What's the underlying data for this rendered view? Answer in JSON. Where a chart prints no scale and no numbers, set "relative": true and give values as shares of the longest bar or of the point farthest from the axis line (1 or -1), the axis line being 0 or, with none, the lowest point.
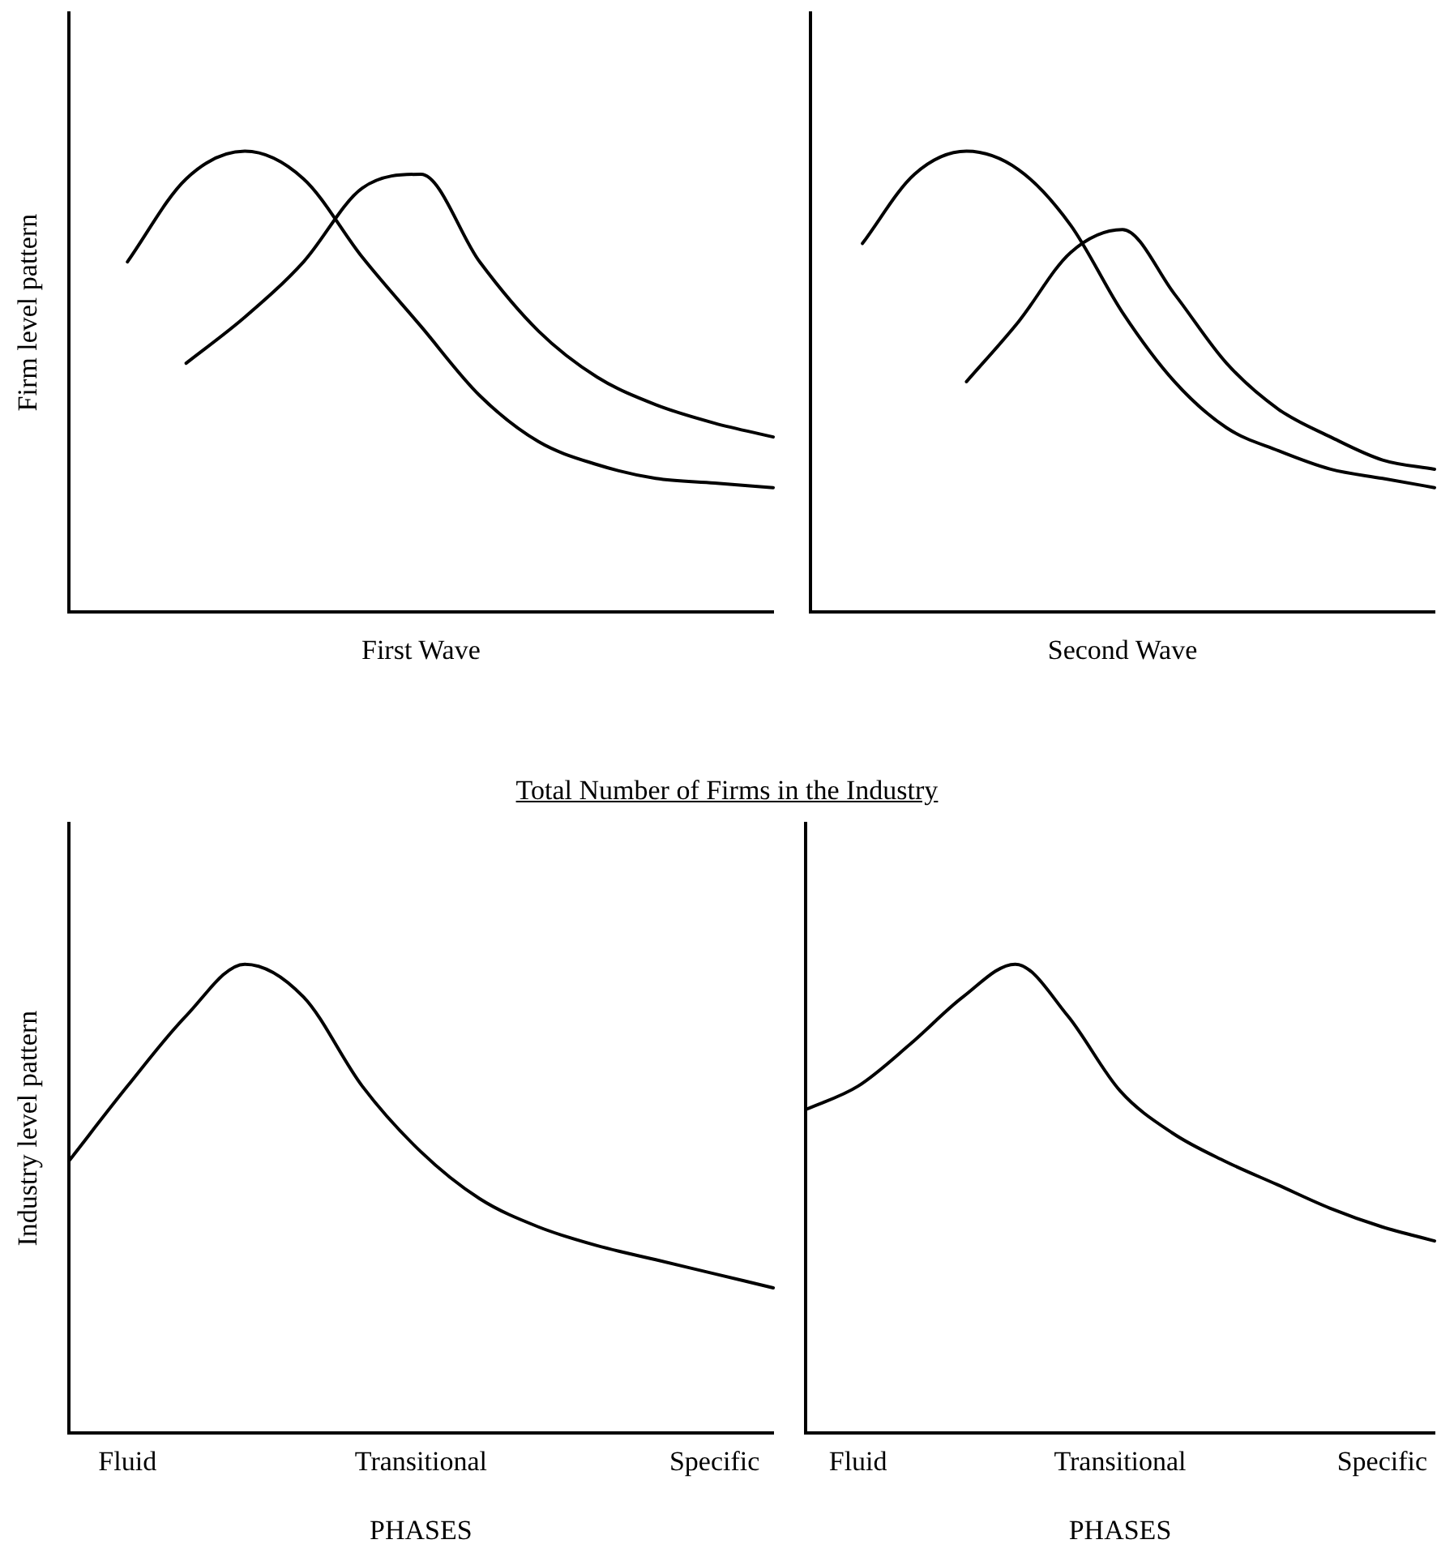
{
  "chart_data": [
    {
      "type": "line",
      "relative": true,
      "xlabel": "First Wave",
      "ylabel": "Firm level pattern",
      "categories": [
        null,
        null,
        null,
        null,
        null,
        null,
        null,
        null,
        null,
        null,
        null,
        null,
        null
      ],
      "tick_labels": false,
      "grid": false,
      "legend": false,
      "marker": "none",
      "line_style": "solid",
      "series": [
        {
          "color": "#000000",
          "values": [
            null,
            0.76,
            0.94,
            1.0,
            0.94,
            0.77,
            0.62,
            0.47,
            0.37,
            0.32,
            0.29,
            0.28,
            0.27
          ]
        },
        {
          "color": "#000000",
          "values": [
            null,
            null,
            0.54,
            0.64,
            0.76,
            0.92,
            0.95,
            0.76,
            0.61,
            0.51,
            0.45,
            0.41,
            0.38
          ]
        }
      ]
    },
    {
      "type": "line",
      "relative": true,
      "xlabel": "Second Wave",
      "categories": [
        null,
        null,
        null,
        null,
        null,
        null,
        null,
        null,
        null,
        null,
        null,
        null,
        null
      ],
      "tick_labels": false,
      "grid": false,
      "legend": false,
      "marker": "none",
      "line_style": "solid",
      "series": [
        {
          "color": "#000000",
          "values": [
            null,
            0.8,
            0.95,
            1.0,
            0.96,
            0.84,
            0.65,
            0.5,
            0.4,
            0.35,
            0.31,
            0.29,
            0.27
          ]
        },
        {
          "color": "#000000",
          "values": [
            null,
            null,
            null,
            0.5,
            0.63,
            0.78,
            0.83,
            0.69,
            0.54,
            0.44,
            0.38,
            0.33,
            0.31
          ]
        }
      ]
    },
    {
      "type": "line",
      "relative": true,
      "title": "Total Number of Firms in the Industry",
      "xlabel": "PHASES",
      "ylabel": "Industry level pattern",
      "categories": [
        null,
        "Fluid",
        null,
        null,
        null,
        null,
        "Transitional",
        null,
        null,
        null,
        null,
        "Specific",
        null
      ],
      "tick_labels": "x",
      "grid": false,
      "legend": false,
      "marker": "none",
      "line_style": "solid",
      "series": [
        {
          "color": "#000000",
          "values": [
            0.58,
            0.74,
            0.89,
            1.0,
            0.93,
            0.74,
            0.6,
            0.5,
            0.44,
            0.4,
            0.37,
            0.34,
            0.31
          ]
        }
      ]
    },
    {
      "type": "line",
      "relative": true,
      "xlabel": "PHASES",
      "categories": [
        null,
        "Fluid",
        null,
        null,
        null,
        null,
        "Transitional",
        null,
        null,
        null,
        null,
        "Specific",
        null
      ],
      "tick_labels": "x",
      "grid": false,
      "legend": false,
      "marker": "none",
      "line_style": "solid",
      "series": [
        {
          "color": "#000000",
          "values": [
            0.69,
            0.74,
            0.83,
            0.93,
            1.0,
            0.89,
            0.73,
            0.64,
            0.58,
            0.53,
            0.48,
            0.44,
            0.41
          ]
        }
      ]
    }
  ]
}
